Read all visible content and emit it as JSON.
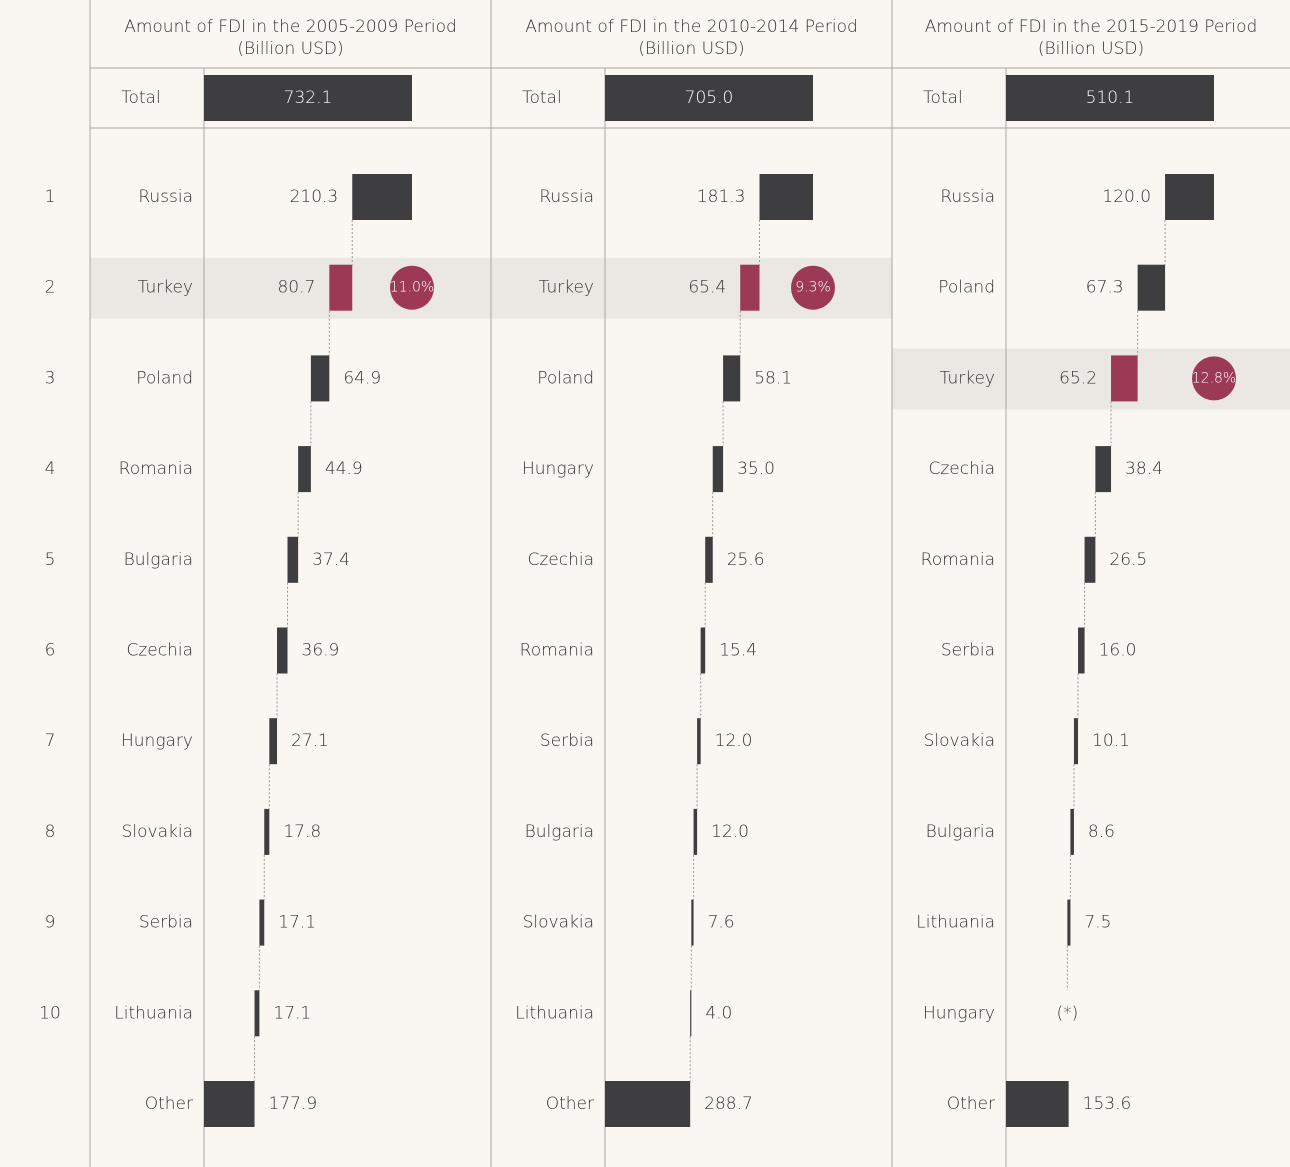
{
  "ranks": [
    1,
    2,
    3,
    4,
    5,
    6,
    7,
    8,
    9,
    10
  ],
  "chart_data": [
    {
      "type": "waterfall",
      "title": [
        "Amount of FDI in the 2005-2009 Period",
        "(Billion USD)"
      ],
      "total_name": "Total",
      "total": {
        "value": 732.1,
        "label": "732.1"
      },
      "categories": [
        "Russia",
        "Turkey",
        "Poland",
        "Romania",
        "Bulgaria",
        "Czechia",
        "Hungary",
        "Slovakia",
        "Serbia",
        "Lithuania",
        "Other"
      ],
      "values": [
        210.3,
        80.7,
        64.9,
        44.9,
        37.4,
        36.9,
        27.1,
        17.8,
        17.1,
        17.1,
        177.9
      ],
      "value_labels": [
        "210.3",
        "80.7",
        "64.9",
        "44.9",
        "37.4",
        "36.9",
        "27.1",
        "17.8",
        "17.1",
        "17.1",
        "177.9"
      ],
      "color": "#3e3d3f",
      "highlight_color": "#9c3a55",
      "highlight_index": 1,
      "share": {
        "value": 11.0,
        "label": "11.0%"
      }
    },
    {
      "type": "waterfall",
      "title": [
        "Amount of FDI in the 2010-2014 Period",
        "(Billion USD)"
      ],
      "total_name": "Total",
      "total": {
        "value": 705.0,
        "label": "705.0"
      },
      "categories": [
        "Russia",
        "Turkey",
        "Poland",
        "Hungary",
        "Czechia",
        "Romania",
        "Serbia",
        "Bulgaria",
        "Slovakia",
        "Lithuania",
        "Other"
      ],
      "values": [
        181.3,
        65.4,
        58.1,
        35.0,
        25.6,
        15.4,
        12.0,
        12.0,
        7.6,
        4.0,
        288.7
      ],
      "value_labels": [
        "181.3",
        "65.4",
        "58.1",
        "35.0",
        "25.6",
        "15.4",
        "12.0",
        "12.0",
        "7.6",
        "4.0",
        "288.7"
      ],
      "color": "#3e3d3f",
      "highlight_color": "#9c3a55",
      "highlight_index": 1,
      "share": {
        "value": 9.3,
        "label": "9.3%"
      }
    },
    {
      "type": "waterfall",
      "title": [
        "Amount of FDI in the 2015-2019 Period",
        "(Billion USD)"
      ],
      "total_name": "Total",
      "total": {
        "value": 510.1,
        "label": "510.1"
      },
      "categories": [
        "Russia",
        "Poland",
        "Turkey",
        "Czechia",
        "Romania",
        "Serbia",
        "Slovakia",
        "Bulgaria",
        "Lithuania",
        "Hungary",
        "Other"
      ],
      "values": [
        120.0,
        67.3,
        65.2,
        38.4,
        26.5,
        16.0,
        10.1,
        8.6,
        7.5,
        null,
        153.6
      ],
      "value_labels": [
        "120.0",
        "67.3",
        "65.2",
        "38.4",
        "26.5",
        "16.0",
        "10.1",
        "8.6",
        "7.5",
        "(*)",
        "153.6"
      ],
      "color": "#3e3d3f",
      "highlight_color": "#9c3a55",
      "highlight_index": 2,
      "share": {
        "value": 12.8,
        "label": "12.8%"
      }
    }
  ]
}
